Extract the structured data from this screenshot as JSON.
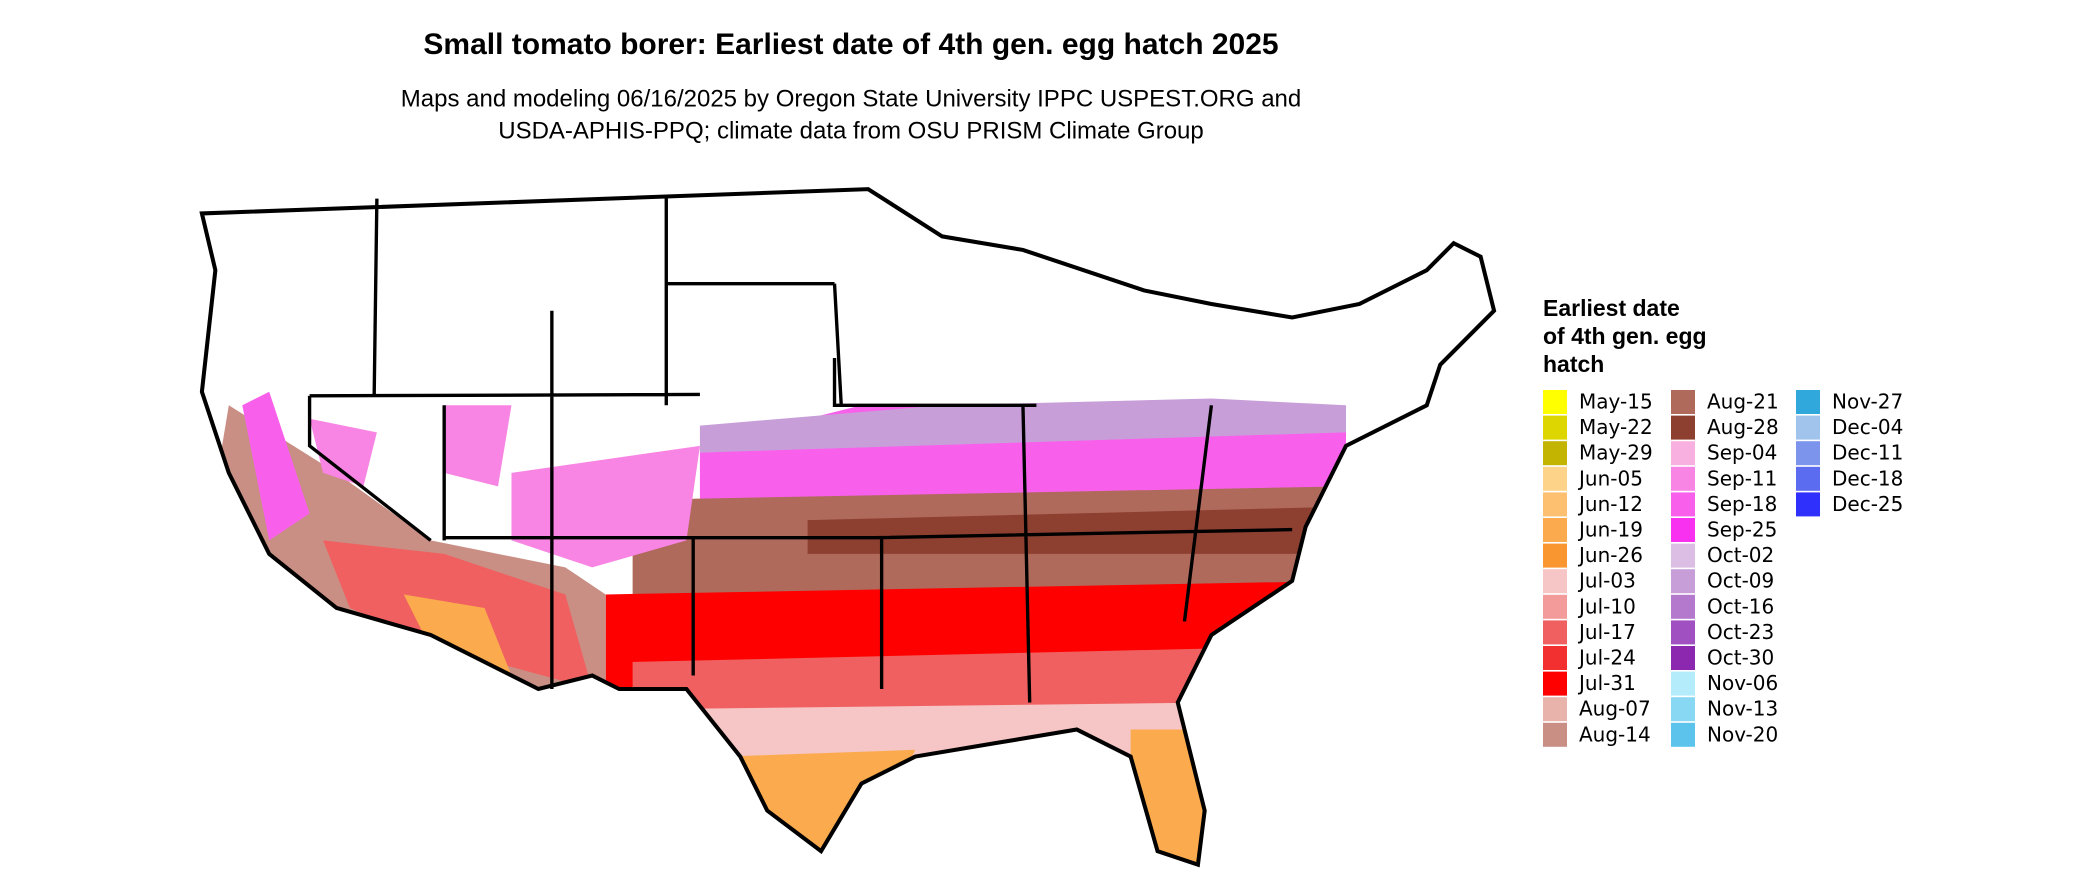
{
  "title": "Small tomato borer: Earliest date of 4th gen. egg hatch 2025",
  "subtitle": [
    "Maps and modeling 06/16/2025 by Oregon State University IPPC USPEST.ORG and",
    "USDA-APHIS-PPQ; climate data from OSU PRISM Climate Group"
  ],
  "legend": {
    "title": [
      "Earliest date",
      "of 4th gen. egg",
      "hatch"
    ],
    "columns": [
      14,
      14,
      5
    ],
    "items": [
      {
        "label": "May-15",
        "color": "#ffff00"
      },
      {
        "label": "May-22",
        "color": "#ded600"
      },
      {
        "label": "May-29",
        "color": "#c2b400"
      },
      {
        "label": "Jun-05",
        "color": "#fdd38a"
      },
      {
        "label": "Jun-12",
        "color": "#fcc070"
      },
      {
        "label": "Jun-19",
        "color": "#fbab4e"
      },
      {
        "label": "Jun-26",
        "color": "#f99630"
      },
      {
        "label": "Jul-03",
        "color": "#f6c6c6"
      },
      {
        "label": "Jul-10",
        "color": "#f39a9a"
      },
      {
        "label": "Jul-17",
        "color": "#f06060"
      },
      {
        "label": "Jul-24",
        "color": "#f23030"
      },
      {
        "label": "Jul-31",
        "color": "#ff0000"
      },
      {
        "label": "Aug-07",
        "color": "#e7b3aa"
      },
      {
        "label": "Aug-14",
        "color": "#c98f84"
      },
      {
        "label": "Aug-21",
        "color": "#b06a5c"
      },
      {
        "label": "Aug-28",
        "color": "#8e4030"
      },
      {
        "label": "Sep-04",
        "color": "#f8b0e0"
      },
      {
        "label": "Sep-11",
        "color": "#f884e4"
      },
      {
        "label": "Sep-18",
        "color": "#f860ec"
      },
      {
        "label": "Sep-25",
        "color": "#f830f0"
      },
      {
        "label": "Oct-02",
        "color": "#dcbee4"
      },
      {
        "label": "Oct-09",
        "color": "#c89ed8"
      },
      {
        "label": "Oct-16",
        "color": "#b478cc"
      },
      {
        "label": "Oct-23",
        "color": "#a050c0"
      },
      {
        "label": "Oct-30",
        "color": "#8c28b0"
      },
      {
        "label": "Nov-06",
        "color": "#b4ecfc"
      },
      {
        "label": "Nov-13",
        "color": "#88d8f4"
      },
      {
        "label": "Nov-20",
        "color": "#5cc4ec"
      },
      {
        "label": "Nov-27",
        "color": "#30a8dc"
      },
      {
        "label": "Dec-04",
        "color": "#a0c4ec"
      },
      {
        "label": "Dec-11",
        "color": "#7c94ec"
      },
      {
        "label": "Dec-18",
        "color": "#5c6cf0"
      },
      {
        "label": "Dec-25",
        "color": "#3030fc"
      }
    ]
  }
}
